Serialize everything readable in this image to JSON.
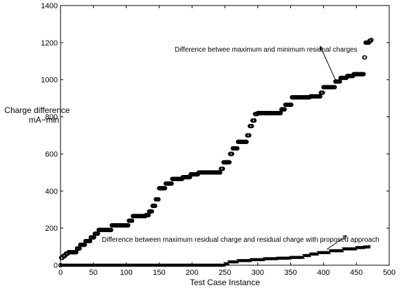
{
  "chart_data": {
    "type": "scatter",
    "xlabel": "Test Case Instance",
    "ylabel_line1": "Charge difference",
    "ylabel_line2": "mA−min",
    "xlim": [
      0,
      500
    ],
    "ylim": [
      0,
      1400
    ],
    "xticks": [
      "0",
      "50",
      "100",
      "150",
      "200",
      "250",
      "300",
      "350",
      "400",
      "450",
      "500"
    ],
    "yticks": [
      "0",
      "200",
      "400",
      "600",
      "800",
      "1000",
      "1200",
      "1400"
    ],
    "grid": false,
    "series": [
      {
        "marker": "o",
        "steps": [
          [
            0,
            0
          ],
          [
            1,
            40
          ],
          [
            4,
            50
          ],
          [
            8,
            62
          ],
          [
            12,
            70
          ],
          [
            25,
            90
          ],
          [
            30,
            110
          ],
          [
            38,
            130
          ],
          [
            46,
            150
          ],
          [
            52,
            170
          ],
          [
            58,
            190
          ],
          [
            78,
            215
          ],
          [
            104,
            240
          ],
          [
            110,
            265
          ],
          [
            130,
            270
          ],
          [
            135,
            290
          ],
          [
            140,
            320
          ],
          [
            145,
            355
          ],
          [
            150,
            415
          ],
          [
            160,
            440
          ],
          [
            170,
            465
          ],
          [
            186,
            475
          ],
          [
            198,
            490
          ],
          [
            210,
            500
          ],
          [
            244,
            520
          ],
          [
            248,
            555
          ],
          [
            258,
            600
          ],
          [
            262,
            630
          ],
          [
            270,
            665
          ],
          [
            284,
            700
          ],
          [
            288,
            750
          ],
          [
            292,
            780
          ],
          [
            296,
            815
          ],
          [
            300,
            820
          ],
          [
            336,
            840
          ],
          [
            342,
            865
          ],
          [
            352,
            905
          ],
          [
            380,
            910
          ],
          [
            396,
            930
          ],
          [
            400,
            960
          ],
          [
            418,
            990
          ],
          [
            426,
            1010
          ],
          [
            436,
            1020
          ],
          [
            446,
            1030
          ],
          [
            462,
            1120
          ],
          [
            464,
            1200
          ],
          [
            470,
            1210
          ],
          [
            473,
            1215
          ]
        ]
      },
      {
        "marker": "x",
        "steps": [
          [
            0,
            0
          ],
          [
            250,
            8
          ],
          [
            256,
            18
          ],
          [
            270,
            25
          ],
          [
            290,
            30
          ],
          [
            310,
            35
          ],
          [
            330,
            38
          ],
          [
            350,
            42
          ],
          [
            370,
            52
          ],
          [
            380,
            60
          ],
          [
            392,
            68
          ],
          [
            410,
            78
          ],
          [
            430,
            88
          ],
          [
            450,
            95
          ],
          [
            462,
            98
          ],
          [
            470,
            102
          ]
        ]
      }
    ],
    "annotations": [
      {
        "text": "Difference betwee maximum and minimum residual charges",
        "x_end": 420,
        "y_end": 985,
        "x_start": 395,
        "y_start": 1180
      },
      {
        "text": "Difference between maximum residual charge and residual charge with proposed approach",
        "x_end": 405,
        "y_end": 85,
        "x_start": 435,
        "y_start": 160
      }
    ]
  }
}
